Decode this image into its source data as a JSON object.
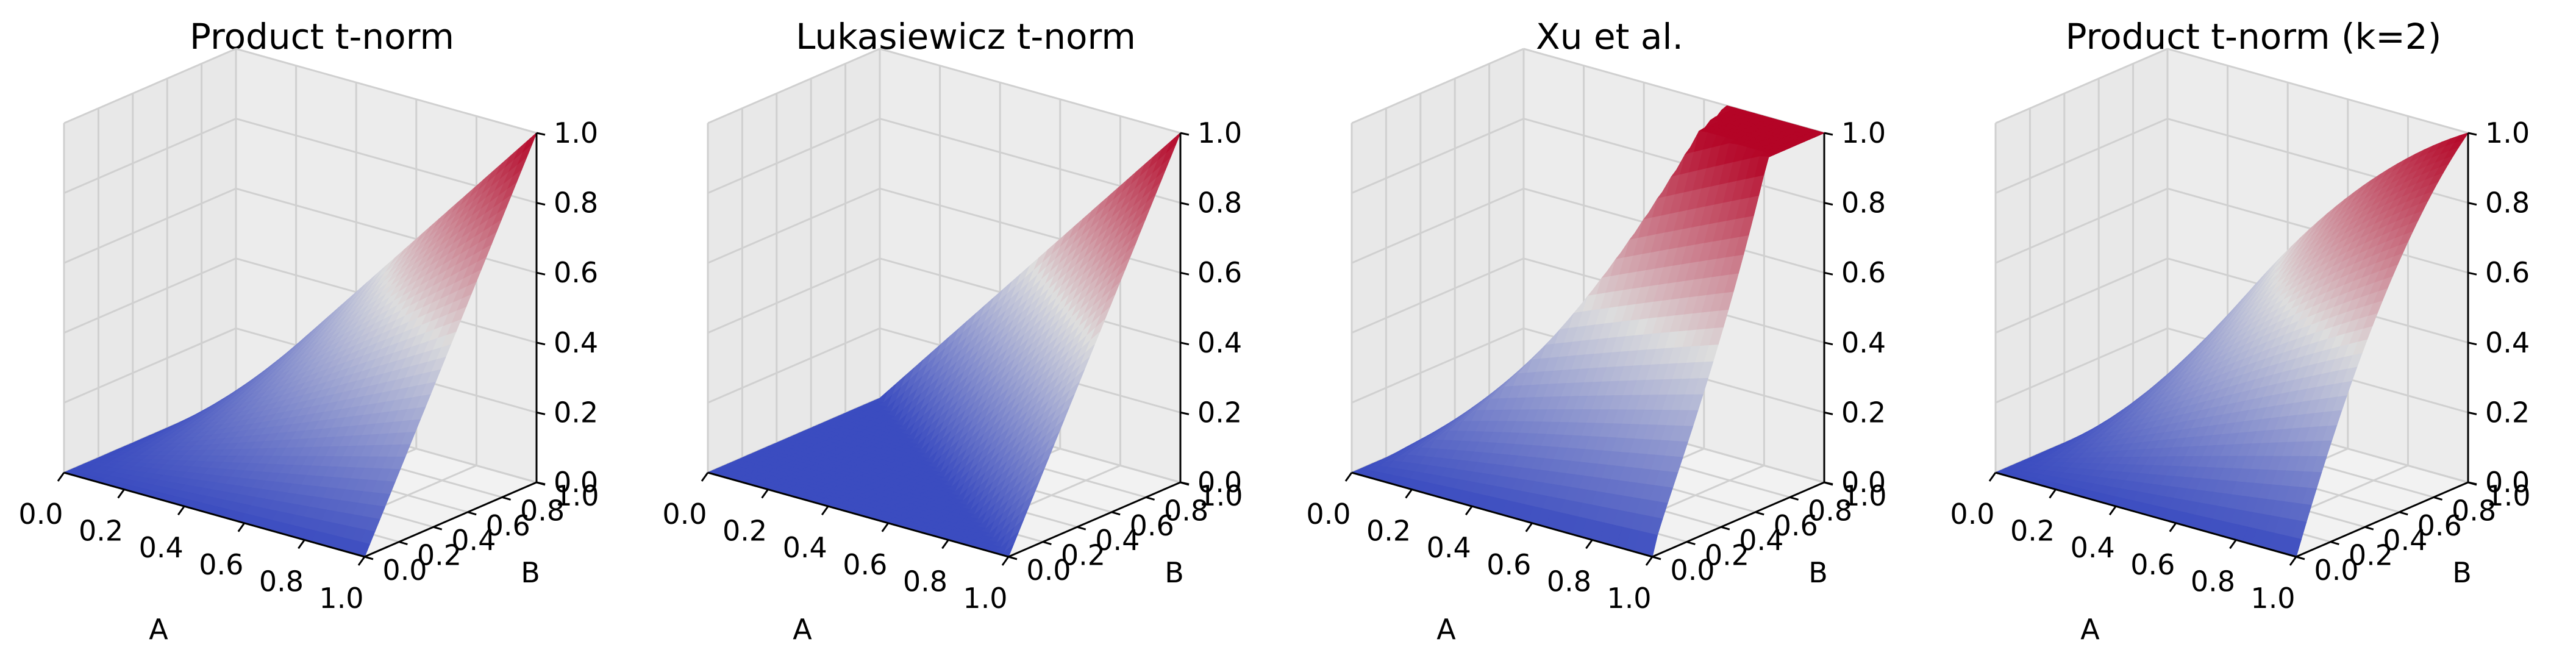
{
  "chart_data": [
    {
      "type": "surface3d",
      "title": "Product t-norm",
      "function": "product",
      "xlabel": "A",
      "ylabel": "B",
      "zlabel": "",
      "xlim": [
        0,
        1
      ],
      "ylim": [
        0,
        1
      ],
      "zlim": [
        0,
        1
      ],
      "xticks": [
        "0.0",
        "0.2",
        "0.4",
        "0.6",
        "0.8",
        "1.0"
      ],
      "yticks": [
        "0.0",
        "0.2",
        "0.4",
        "0.6",
        "0.8",
        "1.0"
      ],
      "zticks": [
        "0.0",
        "0.2",
        "0.4",
        "0.6",
        "0.8",
        "1.0"
      ],
      "colormap": "coolwarm",
      "grid": true
    },
    {
      "type": "surface3d",
      "title": "Lukasiewicz t-norm",
      "function": "lukasiewicz",
      "xlabel": "A",
      "ylabel": "B",
      "zlabel": "",
      "xlim": [
        0,
        1
      ],
      "ylim": [
        0,
        1
      ],
      "zlim": [
        0,
        1
      ],
      "xticks": [
        "0.0",
        "0.2",
        "0.4",
        "0.6",
        "0.8",
        "1.0"
      ],
      "yticks": [
        "0.0",
        "0.2",
        "0.4",
        "0.6",
        "0.8",
        "1.0"
      ],
      "zticks": [
        "0.0",
        "0.2",
        "0.4",
        "0.6",
        "0.8",
        "1.0"
      ],
      "colormap": "coolwarm",
      "grid": true
    },
    {
      "type": "surface3d",
      "title": "Xu et al.",
      "function": "xu",
      "xlabel": "A",
      "ylabel": "B",
      "zlabel": "",
      "xlim": [
        0,
        1
      ],
      "ylim": [
        0,
        1
      ],
      "zlim": [
        0,
        1
      ],
      "xticks": [
        "0.0",
        "0.2",
        "0.4",
        "0.6",
        "0.8",
        "1.0"
      ],
      "yticks": [
        "0.0",
        "0.2",
        "0.4",
        "0.6",
        "0.8",
        "1.0"
      ],
      "zticks": [
        "0.0",
        "0.2",
        "0.4",
        "0.6",
        "0.8",
        "1.0"
      ],
      "colormap": "coolwarm",
      "grid": true
    },
    {
      "type": "surface3d",
      "title": "Product t-norm (k=2)",
      "function": "product_k2",
      "xlabel": "A",
      "ylabel": "B",
      "zlabel": "",
      "xlim": [
        0,
        1
      ],
      "ylim": [
        0,
        1
      ],
      "zlim": [
        0,
        1
      ],
      "xticks": [
        "0.0",
        "0.2",
        "0.4",
        "0.6",
        "0.8",
        "1.0"
      ],
      "yticks": [
        "0.0",
        "0.2",
        "0.4",
        "0.6",
        "0.8",
        "1.0"
      ],
      "zticks": [
        "0.0",
        "0.2",
        "0.4",
        "0.6",
        "0.8",
        "1.0"
      ],
      "colormap": "coolwarm",
      "grid": true
    }
  ],
  "colors": {
    "pane_left": "#e8e8e8",
    "pane_right": "#ececec",
    "pane_floor": "#f2f2f2",
    "grid": "#d0d0d0",
    "cmap_low": "#3b4cc0",
    "cmap_mid": "#dddddd",
    "cmap_high": "#b40426"
  }
}
